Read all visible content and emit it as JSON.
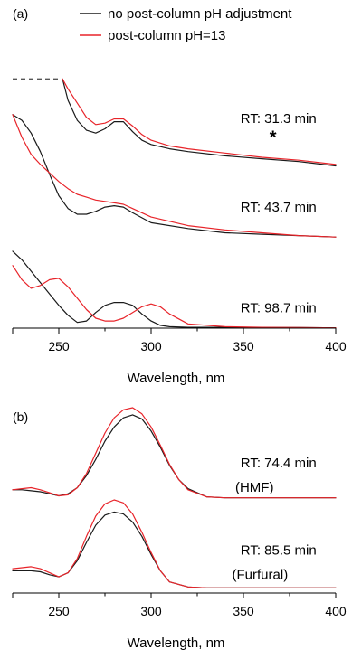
{
  "chart_data": [
    {
      "panel_label": "(a)",
      "type": "line",
      "xlabel": "Wavelength, nm",
      "ylabel": "",
      "xlim": [
        225,
        400
      ],
      "ylim": [
        0,
        100
      ],
      "grid": false,
      "y_axis_shown": false,
      "xticks": [
        250,
        300,
        350,
        400
      ],
      "legend": {
        "placement": "top",
        "entries": [
          {
            "label": "no post-column pH adjustment",
            "color": "#1a1a1a"
          },
          {
            "label": "post-column pH=13",
            "color": "#e8242a"
          }
        ]
      },
      "annotations": [
        {
          "text": "RT: 31.3 min",
          "x": 369,
          "y": 72
        },
        {
          "text": "*",
          "x": 366,
          "y": 65
        },
        {
          "text": "RT: 43.7 min",
          "x": 369,
          "y": 41
        },
        {
          "text": "RT: 98.7 min",
          "x": 369,
          "y": 5.5
        }
      ],
      "dashed_segment": {
        "x": [
          225,
          252
        ],
        "y": [
          87.5,
          87.5
        ],
        "color": "#555555"
      },
      "traces": [
        {
          "group": "RT: 31.3 min",
          "series": "no post-column pH adjustment",
          "color": "#1a1a1a",
          "x": [
            252,
            255,
            260,
            265,
            270,
            275,
            280,
            285,
            290,
            295,
            300,
            310,
            320,
            340,
            360,
            380,
            400
          ],
          "y": [
            87.5,
            80,
            73,
            69.5,
            68.5,
            70,
            72.5,
            72.5,
            69,
            66,
            64.5,
            63,
            62,
            60.5,
            59.5,
            58.5,
            57
          ]
        },
        {
          "group": "RT: 31.3 min",
          "series": "post-column pH=13",
          "color": "#e8242a",
          "x": [
            252,
            255,
            260,
            265,
            270,
            275,
            280,
            285,
            290,
            295,
            300,
            310,
            320,
            340,
            360,
            380,
            400
          ],
          "y": [
            87.5,
            84,
            79,
            74,
            71.5,
            72,
            73.5,
            73.5,
            71,
            68,
            66,
            64,
            63,
            61.5,
            60,
            59,
            57.5
          ]
        },
        {
          "group": "RT: 43.7 min",
          "series": "no post-column pH adjustment",
          "color": "#1a1a1a",
          "x": [
            225,
            230,
            235,
            240,
            245,
            250,
            255,
            260,
            265,
            270,
            275,
            280,
            285,
            290,
            300,
            320,
            340,
            360,
            380,
            400
          ],
          "y": [
            75,
            73,
            68.5,
            62,
            54,
            46.5,
            42,
            40,
            40,
            41,
            42.5,
            43,
            42.5,
            40.5,
            37,
            35,
            33.5,
            33,
            32.5,
            32
          ]
        },
        {
          "group": "RT: 43.7 min",
          "series": "post-column pH=13",
          "color": "#e8242a",
          "x": [
            225,
            230,
            235,
            240,
            245,
            250,
            255,
            260,
            265,
            270,
            275,
            280,
            285,
            290,
            300,
            320,
            340,
            360,
            380,
            400
          ],
          "y": [
            75,
            67,
            61,
            57.5,
            54.5,
            51.5,
            49,
            47,
            46,
            45,
            44.5,
            44,
            43.5,
            42,
            39,
            36,
            34.5,
            33.5,
            32.5,
            32
          ]
        },
        {
          "group": "RT: 98.7 min",
          "series": "no post-column pH adjustment",
          "color": "#1a1a1a",
          "x": [
            225,
            230,
            235,
            240,
            245,
            250,
            255,
            260,
            265,
            270,
            275,
            280,
            285,
            290,
            295,
            300,
            305,
            310,
            320,
            340,
            360,
            380,
            400
          ],
          "y": [
            27,
            24,
            20,
            16,
            12,
            8,
            4.5,
            2,
            2.5,
            5.5,
            8,
            9,
            9,
            8,
            5,
            2.5,
            1,
            0.5,
            0.3,
            0.3,
            0.2,
            0.2,
            0.1
          ]
        },
        {
          "group": "RT: 98.7 min",
          "series": "post-column pH=13",
          "color": "#e8242a",
          "x": [
            225,
            230,
            235,
            240,
            245,
            250,
            255,
            260,
            265,
            270,
            275,
            280,
            285,
            290,
            295,
            300,
            305,
            310,
            320,
            340,
            360,
            380,
            400
          ],
          "y": [
            22,
            17,
            14,
            15,
            17,
            17.5,
            14.5,
            10.5,
            6.5,
            3.5,
            2.5,
            2.5,
            3.5,
            5.5,
            7.5,
            8.5,
            7.5,
            5,
            1.5,
            0.5,
            0.3,
            0.2,
            0.1
          ]
        }
      ]
    },
    {
      "panel_label": "(b)",
      "type": "line",
      "xlabel": "Wavelength, nm",
      "ylabel": "",
      "xlim": [
        225,
        400
      ],
      "ylim": [
        0,
        100
      ],
      "grid": false,
      "y_axis_shown": false,
      "xticks": [
        250,
        300,
        350,
        400
      ],
      "annotations": [
        {
          "text": "RT: 74.4 min",
          "x": 369,
          "y": 62
        },
        {
          "text": "(HMF)",
          "x": 356,
          "y": 50
        },
        {
          "text": "RT: 85.5 min",
          "x": 369,
          "y": 19
        },
        {
          "text": "(Furfural)",
          "x": 359,
          "y": 7
        }
      ],
      "traces": [
        {
          "group": "RT: 74.4 min",
          "series": "no post-column pH adjustment",
          "color": "#1a1a1a",
          "x": [
            225,
            230,
            235,
            240,
            245,
            250,
            255,
            260,
            265,
            270,
            275,
            280,
            285,
            290,
            295,
            300,
            305,
            310,
            315,
            320,
            330,
            340,
            360,
            380,
            400
          ],
          "y": [
            51,
            51,
            50.5,
            50,
            49,
            48,
            49,
            52,
            58,
            66,
            75,
            82,
            86.5,
            88,
            86,
            80,
            72,
            63,
            56,
            51.5,
            47.5,
            47,
            47,
            47,
            47
          ]
        },
        {
          "group": "RT: 74.4 min",
          "series": "post-column pH=13",
          "color": "#e8242a",
          "x": [
            225,
            230,
            235,
            240,
            245,
            250,
            255,
            260,
            265,
            270,
            275,
            280,
            285,
            290,
            295,
            300,
            305,
            310,
            315,
            320,
            330,
            340,
            360,
            380,
            400
          ],
          "y": [
            51,
            51.5,
            52,
            51,
            49.5,
            48,
            48.5,
            52,
            59,
            69,
            79,
            86.5,
            90.5,
            91.5,
            88.5,
            82,
            73,
            63.5,
            56,
            51,
            47.5,
            47,
            47,
            47,
            47
          ]
        },
        {
          "group": "RT: 85.5 min",
          "series": "no post-column pH adjustment",
          "color": "#1a1a1a",
          "x": [
            225,
            230,
            235,
            240,
            245,
            250,
            255,
            260,
            265,
            270,
            275,
            280,
            285,
            290,
            295,
            300,
            305,
            310,
            320,
            330,
            340,
            360,
            380,
            400
          ],
          "y": [
            11,
            11,
            11,
            10.5,
            9,
            8,
            10,
            16,
            25,
            33.5,
            38.5,
            40,
            39,
            35,
            28,
            19,
            11,
            5.5,
            3,
            2.5,
            2.5,
            2.5,
            2.5,
            2.5
          ]
        },
        {
          "group": "RT: 85.5 min",
          "series": "post-column pH=13",
          "color": "#e8242a",
          "x": [
            225,
            230,
            235,
            240,
            245,
            250,
            255,
            260,
            265,
            270,
            275,
            280,
            285,
            290,
            295,
            300,
            305,
            310,
            320,
            330,
            340,
            360,
            380,
            400
          ],
          "y": [
            12,
            12.5,
            13,
            12,
            10,
            8,
            10,
            17,
            28,
            38,
            44,
            46,
            44.5,
            39,
            30,
            20,
            11,
            5.5,
            3,
            2.5,
            2.5,
            2.5,
            2.5,
            2.5
          ]
        }
      ]
    }
  ]
}
